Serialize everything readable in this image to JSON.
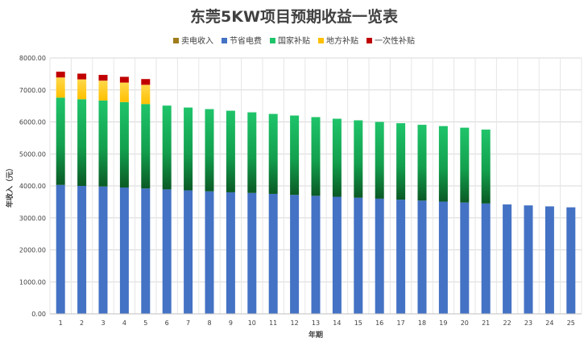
{
  "chart_data": {
    "type": "bar",
    "stacked": true,
    "title": "东莞5KW项目预期收益一览表",
    "xlabel": "年期",
    "ylabel": "年收入（元）",
    "ylim": [
      0,
      8000
    ],
    "yticks": [
      "0.00",
      "1000.00",
      "2000.00",
      "3000.00",
      "4000.00",
      "5000.00",
      "6000.00",
      "7000.00",
      "8000.00"
    ],
    "grid": true,
    "legend_position": "top",
    "categories": [
      "1",
      "2",
      "3",
      "4",
      "5",
      "6",
      "7",
      "8",
      "9",
      "10",
      "11",
      "12",
      "13",
      "14",
      "15",
      "16",
      "17",
      "18",
      "19",
      "20",
      "21",
      "22",
      "23",
      "24",
      "25"
    ],
    "series": [
      {
        "name": "卖电收入",
        "color": "#a07c1c",
        "values": [
          0,
          0,
          0,
          0,
          0,
          0,
          0,
          0,
          0,
          0,
          0,
          0,
          0,
          0,
          0,
          0,
          0,
          0,
          0,
          0,
          0,
          0,
          0,
          0,
          0
        ]
      },
      {
        "name": "节省电费",
        "color": "#4472c4",
        "values": [
          4030,
          4000,
          3980,
          3950,
          3920,
          3890,
          3860,
          3830,
          3800,
          3780,
          3750,
          3720,
          3690,
          3660,
          3630,
          3600,
          3570,
          3540,
          3510,
          3480,
          3450,
          3420,
          3390,
          3360,
          3330
        ]
      },
      {
        "name": "国家补贴",
        "color": "#1fc46a",
        "values": [
          2730,
          2710,
          2690,
          2670,
          2640,
          2620,
          2590,
          2570,
          2550,
          2520,
          2500,
          2480,
          2460,
          2440,
          2420,
          2400,
          2390,
          2370,
          2360,
          2340,
          2310,
          0,
          0,
          0,
          0
        ]
      },
      {
        "name": "地方补贴",
        "color": "#ffc000",
        "values": [
          630,
          620,
          620,
          610,
          600,
          0,
          0,
          0,
          0,
          0,
          0,
          0,
          0,
          0,
          0,
          0,
          0,
          0,
          0,
          0,
          0,
          0,
          0,
          0,
          0
        ]
      },
      {
        "name": "一次性补贴",
        "color": "#c00000",
        "values": [
          180,
          180,
          180,
          180,
          180,
          0,
          0,
          0,
          0,
          0,
          0,
          0,
          0,
          0,
          0,
          0,
          0,
          0,
          0,
          0,
          0,
          0,
          0,
          0,
          0
        ]
      }
    ]
  }
}
